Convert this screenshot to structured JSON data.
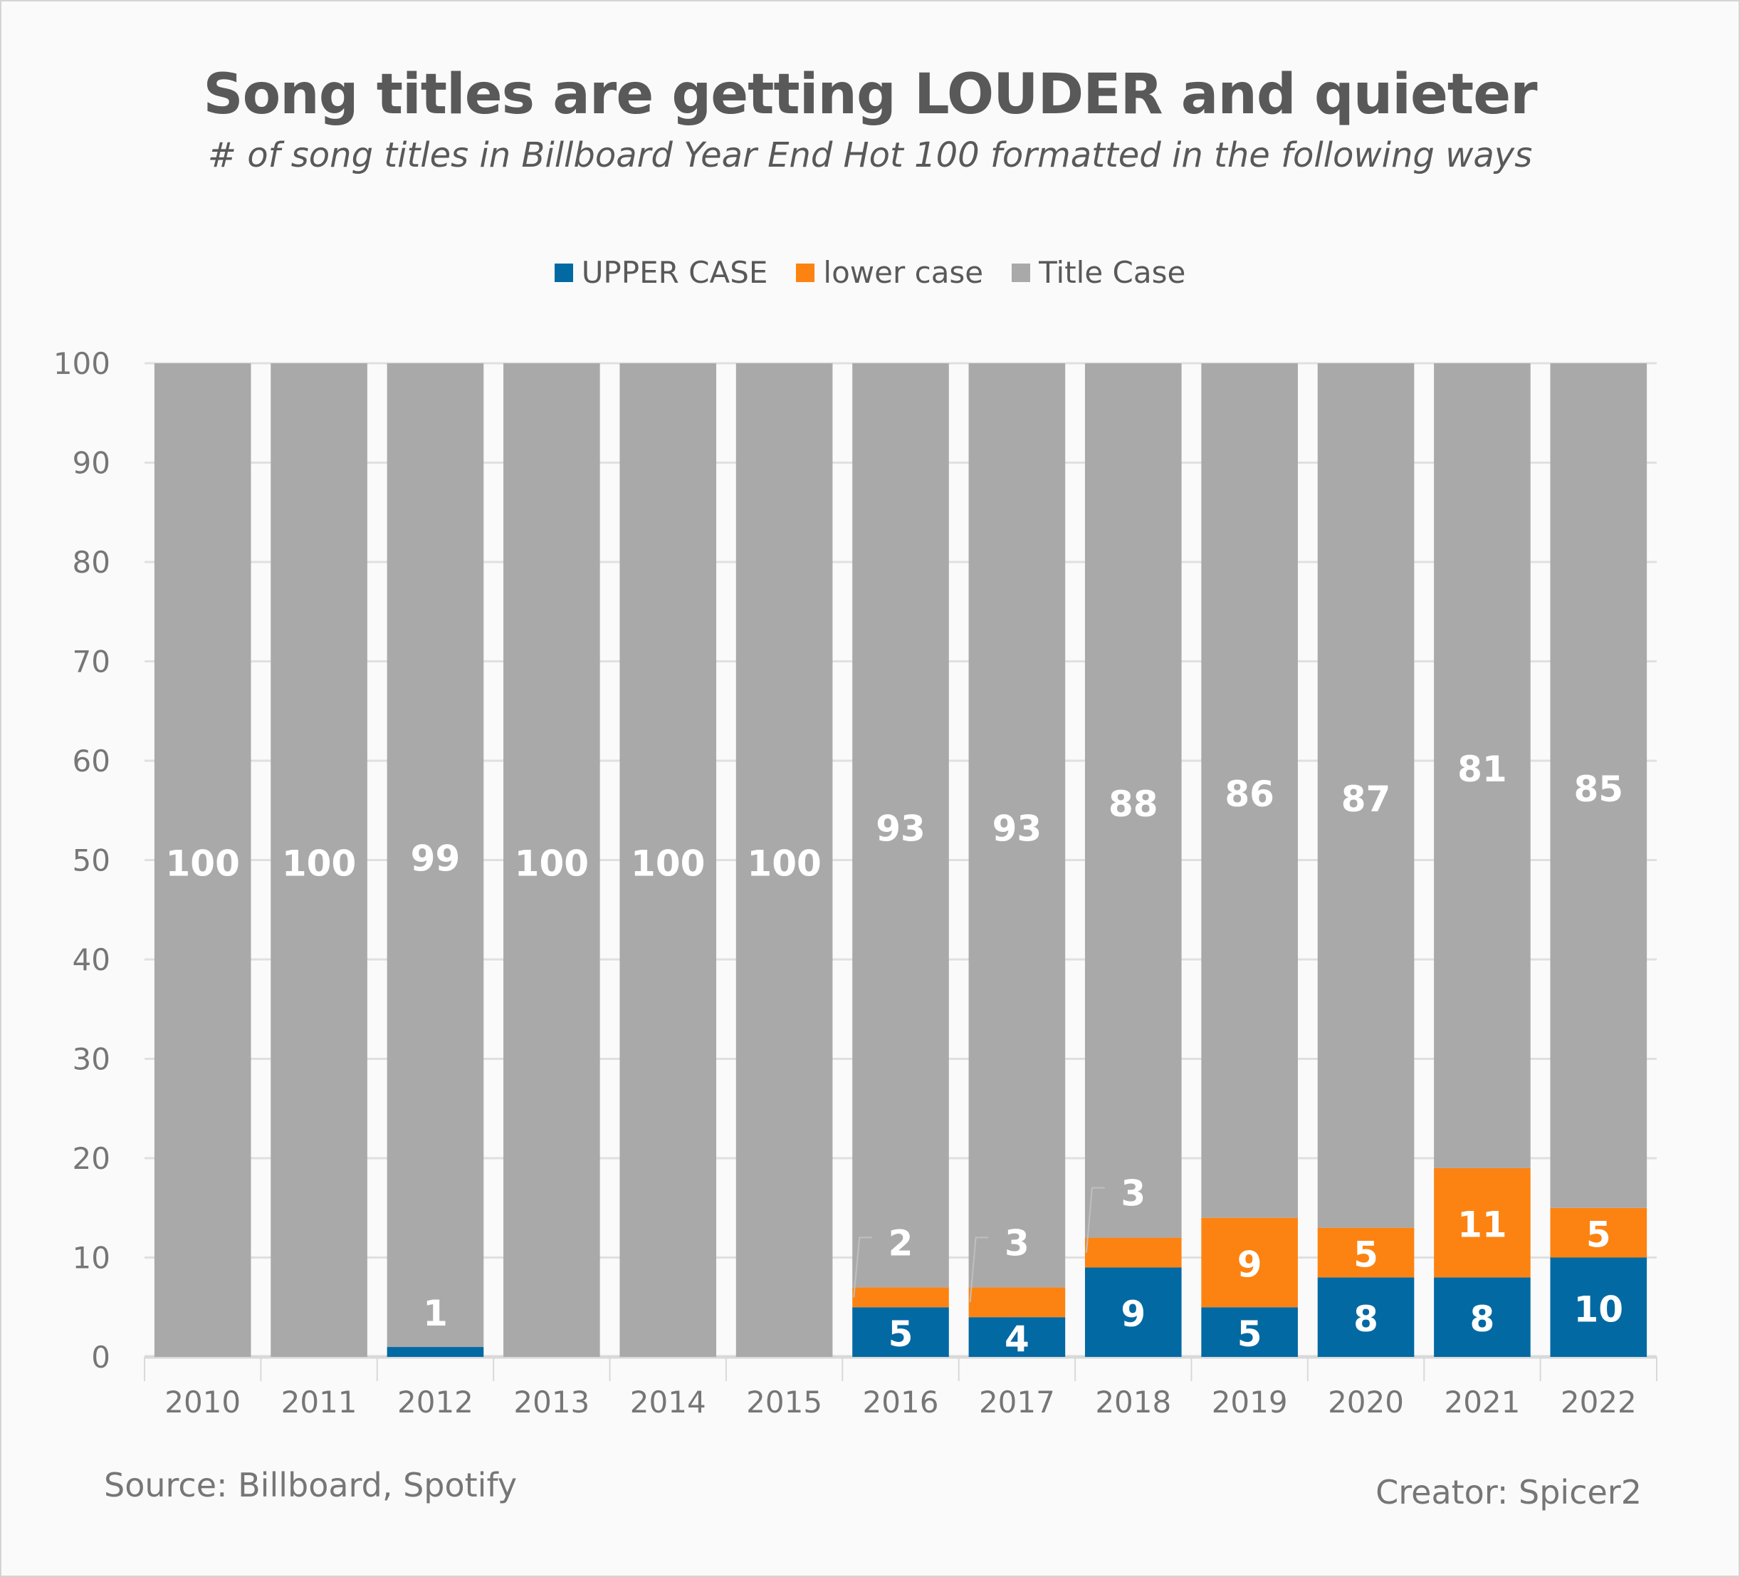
{
  "chart_data": {
    "type": "bar",
    "stacked": true,
    "title": "Song titles are getting LOUDER and quieter",
    "subtitle": "# of song titles in Billboard Year End Hot 100 formatted in the following ways",
    "xlabel": "",
    "ylabel": "",
    "ylim": [
      0,
      100
    ],
    "yticks": [
      0,
      10,
      20,
      30,
      40,
      50,
      60,
      70,
      80,
      90,
      100
    ],
    "grid": true,
    "legend_position": "top-center",
    "categories": [
      "2010",
      "2011",
      "2012",
      "2013",
      "2014",
      "2015",
      "2016",
      "2017",
      "2018",
      "2019",
      "2020",
      "2021",
      "2022"
    ],
    "series": [
      {
        "name": "UPPER CASE",
        "color": "#0369a3",
        "values": [
          0,
          0,
          1,
          0,
          0,
          0,
          5,
          4,
          9,
          5,
          8,
          8,
          10
        ]
      },
      {
        "name": "lower case",
        "color": "#fc8312",
        "values": [
          0,
          0,
          0,
          0,
          0,
          0,
          2,
          3,
          3,
          9,
          5,
          11,
          5
        ]
      },
      {
        "name": "Title Case",
        "color": "#a9a9a9",
        "values": [
          100,
          100,
          99,
          100,
          100,
          100,
          93,
          93,
          88,
          86,
          87,
          81,
          85
        ]
      }
    ]
  },
  "footer": {
    "source": "Source: Billboard, Spotify",
    "creator": "Creator: Spicer2"
  }
}
